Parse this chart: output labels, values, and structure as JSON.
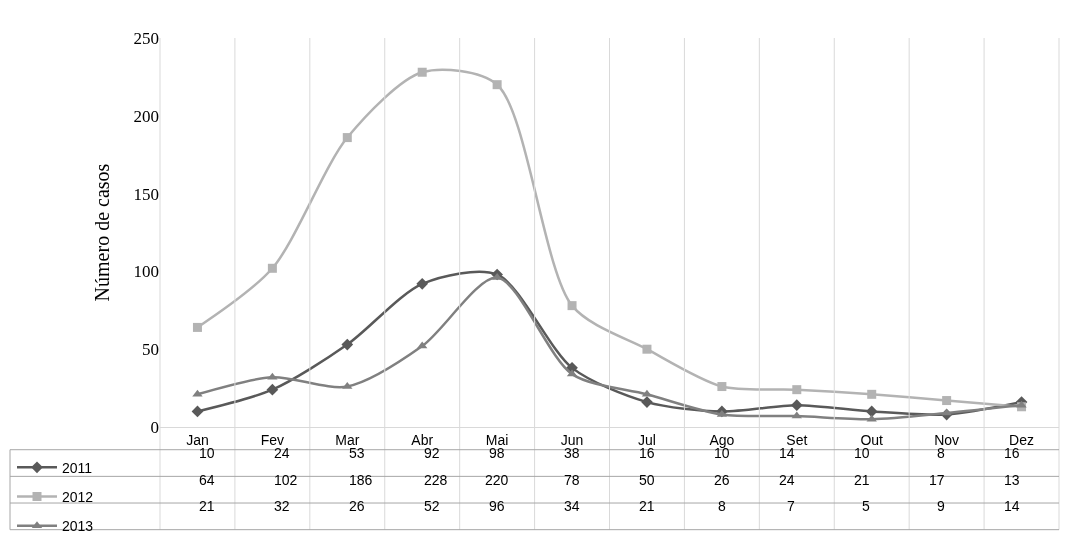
{
  "chart_data": {
    "type": "line",
    "ylabel": "Número de casos",
    "categories": [
      "Jan",
      "Fev",
      "Mar",
      "Abr",
      "Mai",
      "Jun",
      "Jul",
      "Ago",
      "Set",
      "Out",
      "Nov",
      "Dez"
    ],
    "series": [
      {
        "name": "2011",
        "color": "#595959",
        "marker": "diamond",
        "values": [
          10,
          24,
          53,
          92,
          98,
          38,
          16,
          10,
          14,
          10,
          8,
          16
        ]
      },
      {
        "name": "2012",
        "color": "#b3b3b3",
        "marker": "square",
        "values": [
          64,
          102,
          186,
          228,
          220,
          78,
          50,
          26,
          24,
          21,
          17,
          13
        ]
      },
      {
        "name": "2013",
        "color": "#808080",
        "marker": "triangle",
        "values": [
          21,
          32,
          26,
          52,
          96,
          34,
          21,
          8,
          7,
          5,
          9,
          14
        ]
      }
    ],
    "ylim": [
      0,
      250
    ],
    "yticks": [
      0,
      50,
      100,
      150,
      200,
      250
    ],
    "grid": "x",
    "legend": "bottom",
    "data_labels": true,
    "line_style": "solid"
  }
}
